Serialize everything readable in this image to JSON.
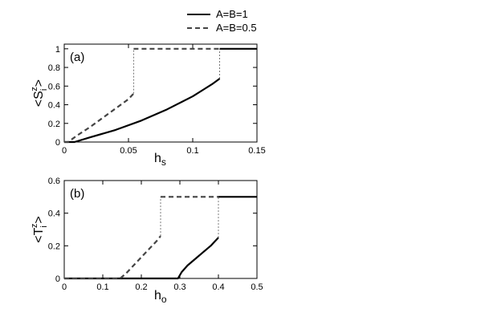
{
  "legend": {
    "placement": "top",
    "entries": [
      {
        "label": "A=B=1",
        "style": "solid",
        "color": "#000000"
      },
      {
        "label": "A=B=0.5",
        "style": "dashed",
        "color": "#444444"
      }
    ]
  },
  "chart_data": [
    {
      "type": "line",
      "panel_label": "(a)",
      "xlabel": "h",
      "xlabel_sub": "s",
      "ylabel_parts": {
        "open": "<",
        "letter": "S",
        "sub": "i",
        "sup": "z",
        "close": ">"
      },
      "xlim": [
        0,
        0.15
      ],
      "ylim": [
        0,
        1.05
      ],
      "xticks": [
        0,
        0.05,
        0.1,
        0.15
      ],
      "xtick_labels": [
        "0",
        "0.05",
        "0.1",
        "0.15"
      ],
      "yticks": [
        0,
        0.2,
        0.4,
        0.6,
        0.8,
        1
      ],
      "ytick_labels": [
        "0",
        "0.2",
        "0.4",
        "0.6",
        "0.8",
        "1"
      ],
      "grid": false,
      "series": [
        {
          "legend_index": 0,
          "style": "solid",
          "x": [
            0,
            0.008,
            0.02,
            0.04,
            0.06,
            0.08,
            0.1,
            0.115,
            0.121,
            0.121,
            0.13,
            0.15
          ],
          "y": [
            0,
            0,
            0.05,
            0.13,
            0.23,
            0.35,
            0.49,
            0.62,
            0.68,
            1,
            1,
            1
          ],
          "jump_at": 0.121
        },
        {
          "legend_index": 1,
          "style": "dashed",
          "x": [
            0,
            0.003,
            0.01,
            0.02,
            0.03,
            0.04,
            0.05,
            0.054,
            0.054,
            0.08,
            0.1,
            0.121
          ],
          "y": [
            0,
            0,
            0.07,
            0.16,
            0.26,
            0.36,
            0.46,
            0.52,
            1,
            1,
            1,
            1
          ],
          "jump_at": 0.054
        }
      ]
    },
    {
      "type": "line",
      "panel_label": "(b)",
      "xlabel": "h",
      "xlabel_sub": "o",
      "ylabel_parts": {
        "open": "<",
        "letter": "T",
        "sub": "i",
        "sup": "z",
        "close": ">"
      },
      "xlim": [
        0,
        0.5
      ],
      "ylim": [
        0,
        0.6
      ],
      "xticks": [
        0,
        0.1,
        0.2,
        0.3,
        0.4,
        0.5
      ],
      "xtick_labels": [
        "0",
        "0.1",
        "0.2",
        "0.3",
        "0.4",
        "0.5"
      ],
      "yticks": [
        0,
        0.2,
        0.4,
        0.6
      ],
      "ytick_labels": [
        "0",
        "0.2",
        "0.4",
        "0.6"
      ],
      "grid": false,
      "series": [
        {
          "legend_index": 0,
          "style": "solid",
          "x": [
            0,
            0.295,
            0.305,
            0.32,
            0.34,
            0.36,
            0.38,
            0.4,
            0.4,
            0.45,
            0.5
          ],
          "y": [
            0,
            0,
            0.04,
            0.08,
            0.12,
            0.16,
            0.2,
            0.25,
            0.5,
            0.5,
            0.5
          ],
          "jump_at": 0.4
        },
        {
          "legend_index": 1,
          "style": "dashed",
          "x": [
            0,
            0.145,
            0.16,
            0.18,
            0.2,
            0.22,
            0.24,
            0.25,
            0.25,
            0.3,
            0.35,
            0.4
          ],
          "y": [
            0,
            0,
            0.03,
            0.08,
            0.13,
            0.18,
            0.23,
            0.26,
            0.5,
            0.5,
            0.5,
            0.5
          ],
          "jump_at": 0.25
        }
      ]
    }
  ]
}
